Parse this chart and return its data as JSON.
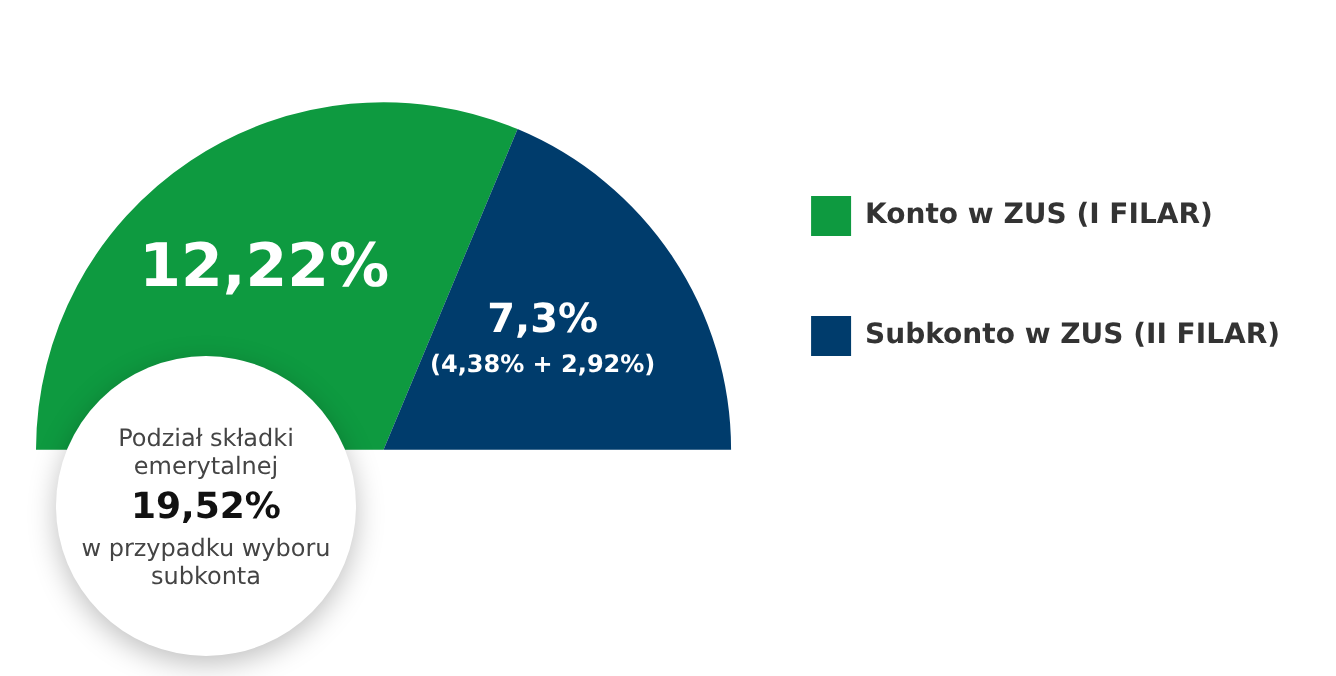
{
  "chart_data": {
    "type": "pie",
    "categories": [
      "Konto w ZUS (I FILAR)",
      "Subkonto w ZUS (II FILAR)"
    ],
    "values": [
      12.22,
      7.3
    ],
    "colors": [
      "#0e9a40",
      "#003c6c"
    ],
    "value_labels": [
      "12,22%",
      "7,3%\n(4,38% + 2,92%)"
    ],
    "legend": "right",
    "annotations": [
      "Podział składki emerytalnej",
      "19,52%",
      "w przypadku wyboru subkonta"
    ]
  }
}
